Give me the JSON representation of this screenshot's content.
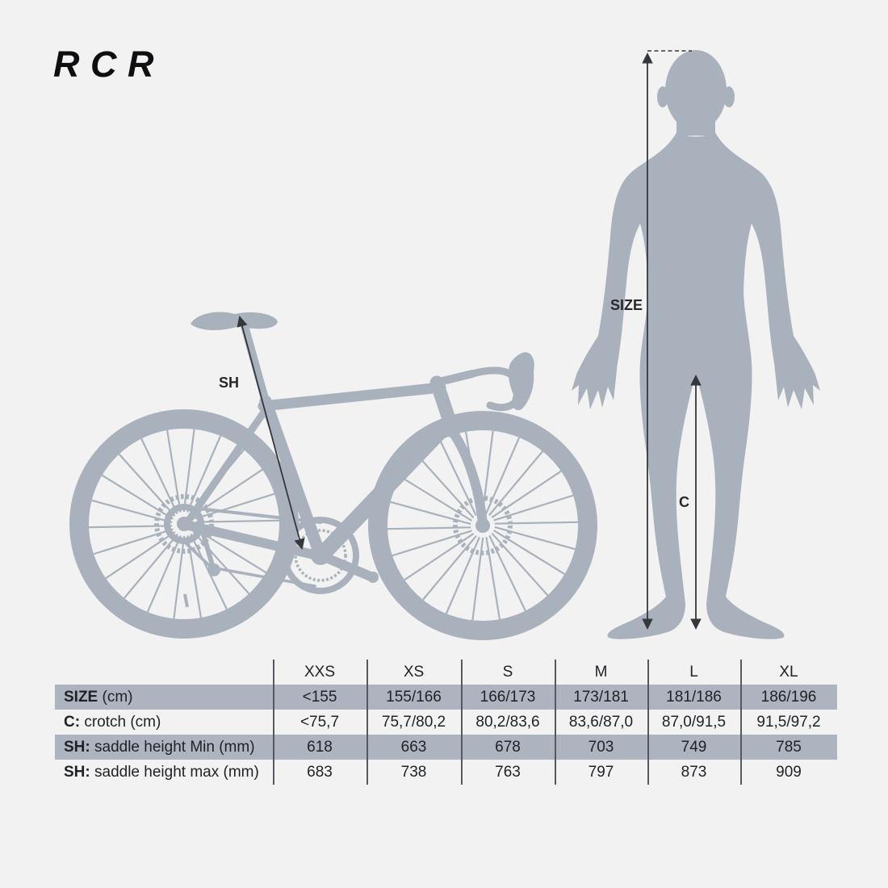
{
  "logo": "RCR",
  "diagram": {
    "saddle_height_label": "SH",
    "body_height_label": "SIZE",
    "crotch_label": "C"
  },
  "colors": {
    "background": "#f2f2f2",
    "silhouette": "#a9b1bd",
    "row_highlight": "#adb4bf",
    "measure_line": "#34373c",
    "text": "#1e2126"
  },
  "table": {
    "sizes": [
      "XXS",
      "XS",
      "S",
      "M",
      "L",
      "XL"
    ],
    "rows": [
      {
        "label_strong": "SIZE",
        "label_rest": " (cm)",
        "highlight": true,
        "values": [
          "<155",
          "155/166",
          "166/173",
          "173/181",
          "181/186",
          "186/196"
        ]
      },
      {
        "label_strong": "C:",
        "label_rest": " crotch (cm)",
        "highlight": false,
        "values": [
          "<75,7",
          "75,7/80,2",
          "80,2/83,6",
          "83,6/87,0",
          "87,0/91,5",
          "91,5/97,2"
        ]
      },
      {
        "label_strong": "SH:",
        "label_rest": " saddle height Min (mm)",
        "highlight": true,
        "values": [
          "618",
          "663",
          "678",
          "703",
          "749",
          "785"
        ]
      },
      {
        "label_strong": "SH:",
        "label_rest": " saddle height max (mm)",
        "highlight": false,
        "values": [
          "683",
          "738",
          "763",
          "797",
          "873",
          "909"
        ]
      }
    ]
  }
}
